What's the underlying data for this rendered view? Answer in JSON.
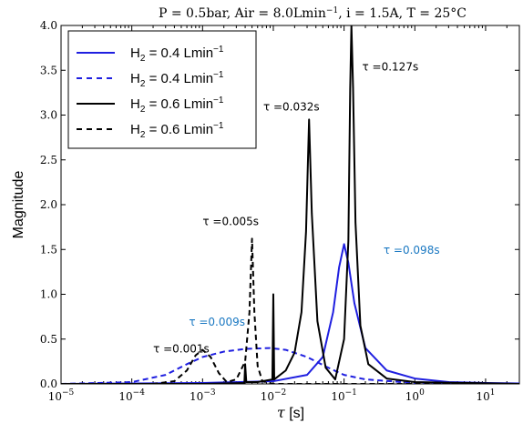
{
  "chart_data": {
    "type": "line",
    "title_main": "P = 0.5bar, Air = 8.0Lmin",
    "title_sup": "−1",
    "title_rest": ", i = 1.5A, T = 25°C",
    "xlabel_sym": "τ",
    "xlabel_unit": " [s]",
    "ylabel": "Magnitude",
    "xscale": "log",
    "xlim": [
      1e-05,
      30
    ],
    "ylim": [
      0,
      4.0
    ],
    "x_ticks": [
      {
        "value": 1e-05,
        "base": "10",
        "exp": "−5"
      },
      {
        "value": 0.0001,
        "base": "10",
        "exp": "−4"
      },
      {
        "value": 0.001,
        "base": "10",
        "exp": "−3"
      },
      {
        "value": 0.01,
        "base": "10",
        "exp": "−2"
      },
      {
        "value": 0.1,
        "base": "10",
        "exp": "−1"
      },
      {
        "value": 1,
        "base": "10",
        "exp": "0"
      },
      {
        "value": 10,
        "base": "10",
        "exp": "1"
      }
    ],
    "y_ticks": [
      "0.0",
      "0.5",
      "1.0",
      "1.5",
      "2.0",
      "2.5",
      "3.0",
      "3.5",
      "4.0"
    ],
    "legend_position": "top-left",
    "series": [
      {
        "name_pre": "H",
        "name_sub": "2",
        "name_mid": " = 0.4 Lmin",
        "name_sup": "−1",
        "color": "#1f1fe0",
        "style": "solid",
        "points": [
          [
            1e-05,
            0.0
          ],
          [
            0.0001,
            0.005
          ],
          [
            0.001,
            0.01
          ],
          [
            0.01,
            0.03
          ],
          [
            0.03,
            0.1
          ],
          [
            0.05,
            0.3
          ],
          [
            0.07,
            0.8
          ],
          [
            0.085,
            1.3
          ],
          [
            0.1,
            1.56
          ],
          [
            0.115,
            1.35
          ],
          [
            0.14,
            0.9
          ],
          [
            0.2,
            0.4
          ],
          [
            0.4,
            0.15
          ],
          [
            1,
            0.06
          ],
          [
            3,
            0.02
          ],
          [
            10,
            0.01
          ],
          [
            30,
            0.005
          ]
        ]
      },
      {
        "name_pre": "H",
        "name_sub": "2",
        "name_mid": " = 0.4 Lmin",
        "name_sup": "−1",
        "color": "#1f1fe0",
        "style": "dashed",
        "points": [
          [
            1e-05,
            0.0
          ],
          [
            0.0001,
            0.02
          ],
          [
            0.0003,
            0.1
          ],
          [
            0.0006,
            0.22
          ],
          [
            0.001,
            0.3
          ],
          [
            0.002,
            0.36
          ],
          [
            0.004,
            0.39
          ],
          [
            0.009,
            0.4
          ],
          [
            0.015,
            0.38
          ],
          [
            0.03,
            0.3
          ],
          [
            0.06,
            0.18
          ],
          [
            0.1,
            0.1
          ],
          [
            0.2,
            0.05
          ],
          [
            1,
            0.01
          ],
          [
            30,
            0.0
          ]
        ]
      },
      {
        "name_pre": "H",
        "name_sub": "2",
        "name_mid": " = 0.6 Lmin",
        "name_sup": "−1",
        "color": "#000000",
        "style": "solid",
        "points": [
          [
            1e-05,
            0.0
          ],
          [
            0.001,
            0.0
          ],
          [
            0.0039,
            0.01
          ],
          [
            0.004,
            0.22
          ],
          [
            0.00415,
            0.02
          ],
          [
            0.006,
            0.02
          ],
          [
            0.0097,
            0.05
          ],
          [
            0.01,
            1.0
          ],
          [
            0.0103,
            0.05
          ],
          [
            0.015,
            0.15
          ],
          [
            0.02,
            0.35
          ],
          [
            0.025,
            0.8
          ],
          [
            0.029,
            1.7
          ],
          [
            0.032,
            2.95
          ],
          [
            0.035,
            1.9
          ],
          [
            0.042,
            0.7
          ],
          [
            0.055,
            0.18
          ],
          [
            0.075,
            0.05
          ],
          [
            0.1,
            0.5
          ],
          [
            0.115,
            1.6
          ],
          [
            0.122,
            3.3
          ],
          [
            0.127,
            4.0
          ],
          [
            0.134,
            3.3
          ],
          [
            0.145,
            1.8
          ],
          [
            0.17,
            0.65
          ],
          [
            0.22,
            0.22
          ],
          [
            0.4,
            0.06
          ],
          [
            1,
            0.02
          ],
          [
            30,
            0.0
          ]
        ]
      },
      {
        "name_pre": "H",
        "name_sub": "2",
        "name_mid": " = 0.6 Lmin",
        "name_sup": "−1",
        "color": "#000000",
        "style": "dashed",
        "points": [
          [
            1e-05,
            0.0
          ],
          [
            0.0002,
            0.0
          ],
          [
            0.0004,
            0.03
          ],
          [
            0.0006,
            0.15
          ],
          [
            0.0008,
            0.32
          ],
          [
            0.001,
            0.38
          ],
          [
            0.0013,
            0.3
          ],
          [
            0.0017,
            0.12
          ],
          [
            0.0022,
            0.02
          ],
          [
            0.003,
            0.05
          ],
          [
            0.004,
            0.25
          ],
          [
            0.0046,
            0.8
          ],
          [
            0.005,
            1.62
          ],
          [
            0.0054,
            0.8
          ],
          [
            0.006,
            0.2
          ],
          [
            0.007,
            0.03
          ],
          [
            0.01,
            0.0
          ],
          [
            30,
            0.0
          ]
        ]
      }
    ],
    "annotations": [
      {
        "label": "τ =0.127s",
        "x": 0.45,
        "y": 3.5,
        "color": "#000000"
      },
      {
        "label": "τ =0.032s",
        "x": 0.018,
        "y": 3.05,
        "color": "#000000"
      },
      {
        "label": "τ =0.005s",
        "x": 0.0025,
        "y": 1.77,
        "color": "#000000"
      },
      {
        "label": "τ =0.098s",
        "x": 0.9,
        "y": 1.45,
        "color": "#1a78c2"
      },
      {
        "label": "τ =0.009s",
        "x": 0.0016,
        "y": 0.65,
        "color": "#1a78c2"
      },
      {
        "label": "τ =0.001s",
        "x": 0.0005,
        "y": 0.35,
        "color": "#000000"
      }
    ]
  }
}
